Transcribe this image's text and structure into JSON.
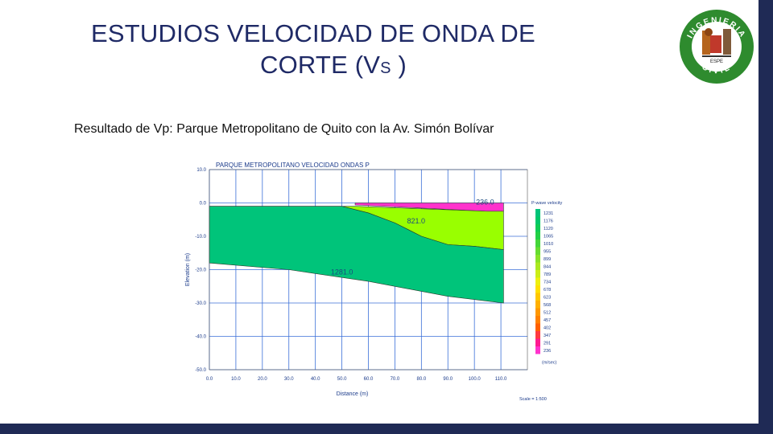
{
  "slide": {
    "title_line1": "ESTUDIOS  VELOCIDAD DE ONDA DE",
    "title_line2_main": "CORTE (V",
    "title_line2_sub": "S",
    "title_line2_end": " )",
    "subtitle": "Resultado de  Vp: Parque Metropolitano de Quito con la Av. Simón Bolívar"
  },
  "logo": {
    "top_text": "INGENIERIA",
    "bottom_text": "CIVIL",
    "badge_text": "ESPE",
    "colors": {
      "ring": "#2e8b2e",
      "inner": "#ffffff"
    }
  },
  "chart_data": {
    "type": "area",
    "title": "PARQUE METROPOLITANO VELOCIDAD ONDAS P",
    "xlabel": "Distance (m)",
    "ylabel": "Elevation (m)",
    "xlim": [
      0,
      120
    ],
    "ylim": [
      -50,
      10
    ],
    "x_ticks": [
      "0.0",
      "10.0",
      "20.0",
      "30.0",
      "40.0",
      "50.0",
      "60.0",
      "70.0",
      "80.0",
      "90.0",
      "100.0",
      "110.0"
    ],
    "y_ticks": [
      "10.0",
      "0.0",
      "-10.0",
      "-20.0",
      "-30.0",
      "-40.0",
      "-50.0"
    ],
    "grid": true,
    "layers": [
      {
        "name": "layer-1",
        "velocity_label": "236.0",
        "color": "#ff33cc",
        "top": [
          [
            55,
            0.0
          ],
          [
            111,
            0.0
          ]
        ],
        "bottom": [
          [
            55,
            -0.6
          ],
          [
            105,
            -2.5
          ],
          [
            111,
            -2.5
          ]
        ]
      },
      {
        "name": "layer-2",
        "velocity_label": "821.0",
        "color": "#99ff00",
        "top": [
          [
            0,
            -1.0
          ],
          [
            55,
            -1.0
          ],
          [
            105,
            -2.5
          ],
          [
            111,
            -2.5
          ]
        ],
        "bottom": [
          [
            0,
            -1.0
          ],
          [
            50,
            -1.0
          ],
          [
            60,
            -3.0
          ],
          [
            70,
            -6.0
          ],
          [
            80,
            -10.0
          ],
          [
            90,
            -12.5
          ],
          [
            100,
            -13.0
          ],
          [
            111,
            -14.0
          ]
        ]
      },
      {
        "name": "layer-3",
        "velocity_label": "1281.0",
        "color": "#00c47a",
        "top": [
          [
            0,
            -1.0
          ],
          [
            50,
            -1.0
          ],
          [
            60,
            -3.0
          ],
          [
            70,
            -6.0
          ],
          [
            80,
            -10.0
          ],
          [
            90,
            -12.5
          ],
          [
            100,
            -13.0
          ],
          [
            111,
            -14.0
          ]
        ],
        "bottom": [
          [
            0,
            -18.0
          ],
          [
            30,
            -20.0
          ],
          [
            60,
            -23.5
          ],
          [
            90,
            -28.0
          ],
          [
            111,
            -30.0
          ]
        ]
      }
    ],
    "legend": {
      "title": "P-wave velocity",
      "placement": "right",
      "unit": "(m/sec)",
      "labels": [
        "1231",
        "1176",
        "1120",
        "1065",
        "1010",
        "955",
        "899",
        "844",
        "789",
        "734",
        "678",
        "623",
        "568",
        "512",
        "457",
        "402",
        "347",
        "291",
        "236"
      ],
      "colors": [
        "#00c47a",
        "#00c86a",
        "#10cc55",
        "#22d045",
        "#44d63a",
        "#66dc30",
        "#88e228",
        "#aae820",
        "#ccee18",
        "#eef010",
        "#ffe000",
        "#ffc800",
        "#ffb000",
        "#ff9800",
        "#ff8000",
        "#ff6000",
        "#ff3a40",
        "#ff1a90",
        "#ff33cc"
      ]
    },
    "scale_text": "Scale = 1:500"
  }
}
